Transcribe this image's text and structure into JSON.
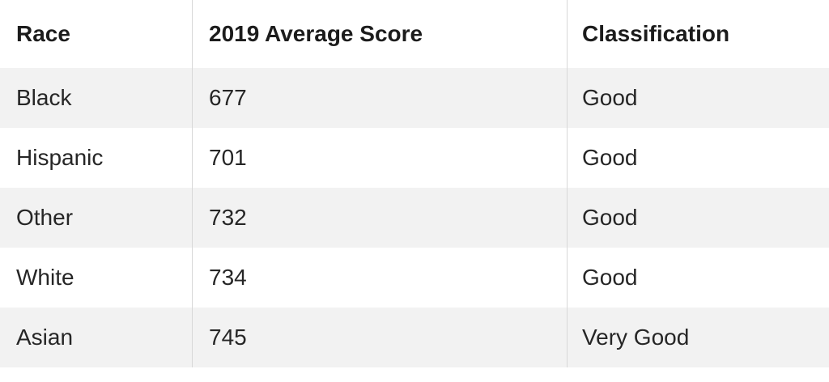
{
  "table": {
    "columns": [
      {
        "id": "race",
        "label": "Race"
      },
      {
        "id": "score",
        "label": "2019 Average Score"
      },
      {
        "id": "classification",
        "label": "Classification"
      }
    ],
    "rows": [
      {
        "race": "Black",
        "score": "677",
        "classification": "Good"
      },
      {
        "race": "Hispanic",
        "score": "701",
        "classification": "Good"
      },
      {
        "race": "Other",
        "score": "732",
        "classification": "Good"
      },
      {
        "race": "White",
        "score": "734",
        "classification": "Good"
      },
      {
        "race": "Asian",
        "score": "745",
        "classification": "Very Good"
      }
    ]
  },
  "chart_data": {
    "type": "table",
    "title": "",
    "columns": [
      "Race",
      "2019 Average Score",
      "Classification"
    ],
    "rows": [
      [
        "Black",
        677,
        "Good"
      ],
      [
        "Hispanic",
        701,
        "Good"
      ],
      [
        "Other",
        732,
        "Good"
      ],
      [
        "White",
        734,
        "Good"
      ],
      [
        "Asian",
        745,
        "Very Good"
      ]
    ]
  },
  "colors": {
    "row_bg": "#ffffff",
    "alt_row_bg": "#f2f2f2",
    "column_divider": "#d8d8d8",
    "header_text": "#1c1c1c",
    "body_text": "#262626"
  }
}
